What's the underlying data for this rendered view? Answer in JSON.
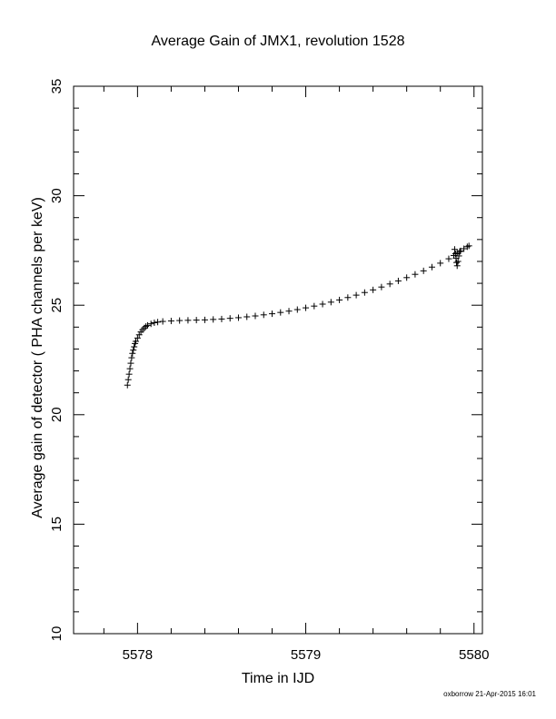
{
  "chart_data": {
    "type": "scatter",
    "title": "Average Gain of JMX1, revolution 1528",
    "xlabel": "Time in IJD",
    "ylabel": "Average gain of detector ( PHA channels per keV)",
    "xlim": [
      5577.62,
      5580.05
    ],
    "ylim": [
      10,
      35
    ],
    "xticks": [
      5578,
      5579,
      5580
    ],
    "yticks": [
      10,
      15,
      20,
      25,
      30,
      35
    ],
    "marker": "plus",
    "color": "#000000",
    "grid": false,
    "series": [
      {
        "points": [
          [
            5577.94,
            21.35
          ],
          [
            5577.945,
            21.6
          ],
          [
            5577.95,
            21.85
          ],
          [
            5577.955,
            22.1
          ],
          [
            5577.96,
            22.35
          ],
          [
            5577.965,
            22.6
          ],
          [
            5577.97,
            22.8
          ],
          [
            5577.975,
            22.95
          ],
          [
            5577.98,
            23.1
          ],
          [
            5577.985,
            23.25
          ],
          [
            5577.99,
            23.35
          ],
          [
            5578.0,
            23.5
          ],
          [
            5578.01,
            23.65
          ],
          [
            5578.02,
            23.78
          ],
          [
            5578.03,
            23.88
          ],
          [
            5578.04,
            23.96
          ],
          [
            5578.05,
            24.03
          ],
          [
            5578.06,
            24.08
          ],
          [
            5578.08,
            24.15
          ],
          [
            5578.1,
            24.2
          ],
          [
            5578.12,
            24.23
          ],
          [
            5578.15,
            24.26
          ],
          [
            5578.2,
            24.28
          ],
          [
            5578.25,
            24.3
          ],
          [
            5578.3,
            24.31
          ],
          [
            5578.35,
            24.32
          ],
          [
            5578.4,
            24.33
          ],
          [
            5578.45,
            24.35
          ],
          [
            5578.5,
            24.37
          ],
          [
            5578.55,
            24.4
          ],
          [
            5578.6,
            24.43
          ],
          [
            5578.65,
            24.47
          ],
          [
            5578.7,
            24.51
          ],
          [
            5578.75,
            24.56
          ],
          [
            5578.8,
            24.61
          ],
          [
            5578.85,
            24.67
          ],
          [
            5578.9,
            24.73
          ],
          [
            5578.95,
            24.8
          ],
          [
            5579.0,
            24.88
          ],
          [
            5579.05,
            24.96
          ],
          [
            5579.1,
            25.05
          ],
          [
            5579.15,
            25.14
          ],
          [
            5579.2,
            25.24
          ],
          [
            5579.25,
            25.35
          ],
          [
            5579.3,
            25.46
          ],
          [
            5579.35,
            25.58
          ],
          [
            5579.4,
            25.7
          ],
          [
            5579.45,
            25.83
          ],
          [
            5579.5,
            25.97
          ],
          [
            5579.55,
            26.11
          ],
          [
            5579.6,
            26.26
          ],
          [
            5579.65,
            26.41
          ],
          [
            5579.7,
            26.57
          ],
          [
            5579.75,
            26.74
          ],
          [
            5579.8,
            26.92
          ],
          [
            5579.85,
            27.12
          ],
          [
            5579.88,
            27.27
          ],
          [
            5579.9,
            27.38
          ],
          [
            5579.92,
            27.48
          ],
          [
            5579.94,
            27.58
          ],
          [
            5579.96,
            27.67
          ],
          [
            5579.97,
            27.71
          ],
          [
            5579.885,
            27.55
          ],
          [
            5579.89,
            27.35
          ],
          [
            5579.893,
            27.15
          ],
          [
            5579.896,
            26.95
          ],
          [
            5579.9,
            26.8
          ],
          [
            5579.905,
            27.0
          ],
          [
            5579.91,
            27.25
          ],
          [
            5579.915,
            27.45
          ]
        ]
      }
    ]
  },
  "footer": {
    "credit": "oxborrow 21-Apr-2015 16:01"
  }
}
